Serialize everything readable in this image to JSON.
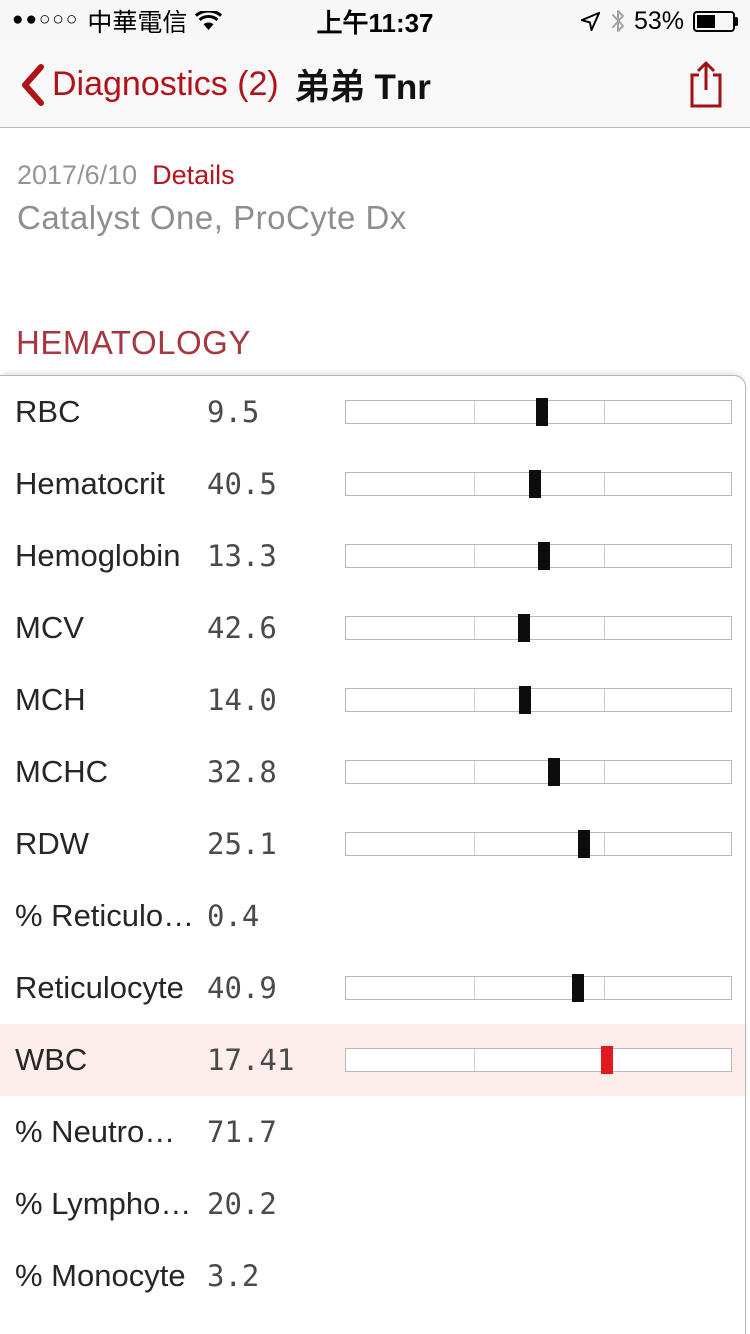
{
  "status_bar": {
    "signal_dots": "●●○○○",
    "carrier": "中華電信",
    "time": "上午11:37",
    "battery_percent": "53%",
    "battery_fill_pct": 53,
    "icons": [
      "wifi-icon",
      "location-arrow-icon",
      "bluetooth-icon",
      "battery-icon"
    ]
  },
  "nav": {
    "back_label": "Diagnostics (2)",
    "title": "弟弟 Tnr",
    "icons": [
      "back-chevron-icon",
      "share-icon"
    ]
  },
  "report": {
    "date": "2017/6/10",
    "details_label": "Details",
    "analyzers": "Catalyst One, ProCyte Dx"
  },
  "section": {
    "title": "HEMATOLOGY"
  },
  "table": {
    "range_bar": {
      "low_divider_pct": 33.3,
      "high_divider_pct": 66.9
    },
    "rows": [
      {
        "label": "RBC",
        "value": "9.5",
        "marker_pct": 50.9,
        "flag": "normal",
        "highlight": false
      },
      {
        "label": "Hematocrit",
        "value": "40.5",
        "marker_pct": 49.1,
        "flag": "normal",
        "highlight": false
      },
      {
        "label": "Hemoglobin",
        "value": "13.3",
        "marker_pct": 51.4,
        "flag": "normal",
        "highlight": false
      },
      {
        "label": "MCV",
        "value": "42.6",
        "marker_pct": 46.3,
        "flag": "normal",
        "highlight": false
      },
      {
        "label": "MCH",
        "value": "14.0",
        "marker_pct": 46.5,
        "flag": "normal",
        "highlight": false
      },
      {
        "label": "MCHC",
        "value": "32.8",
        "marker_pct": 54.0,
        "flag": "normal",
        "highlight": false
      },
      {
        "label": "RDW",
        "value": "25.1",
        "marker_pct": 61.8,
        "flag": "normal",
        "highlight": false
      },
      {
        "label": "% Reticulo…",
        "value": "0.4",
        "marker_pct": null,
        "flag": "normal",
        "highlight": false
      },
      {
        "label": "Reticulocyte",
        "value": "40.9",
        "marker_pct": 60.2,
        "flag": "normal",
        "highlight": false
      },
      {
        "label": "WBC",
        "value": "17.41",
        "marker_pct": 67.7,
        "flag": "high",
        "highlight": true
      },
      {
        "label": "% Neutro…",
        "value": "71.7",
        "marker_pct": null,
        "flag": "normal",
        "highlight": false
      },
      {
        "label": "% Lympho…",
        "value": "20.2",
        "marker_pct": null,
        "flag": "normal",
        "highlight": false
      },
      {
        "label": "% Monocyte",
        "value": "3.2",
        "marker_pct": null,
        "flag": "normal",
        "highlight": false
      }
    ]
  },
  "colors": {
    "accent_red": "#b01218",
    "section_red": "#a5383f",
    "marker_black": "#0d0d0d",
    "marker_red": "#e01a1f",
    "row_highlight": "#fdeeec"
  }
}
